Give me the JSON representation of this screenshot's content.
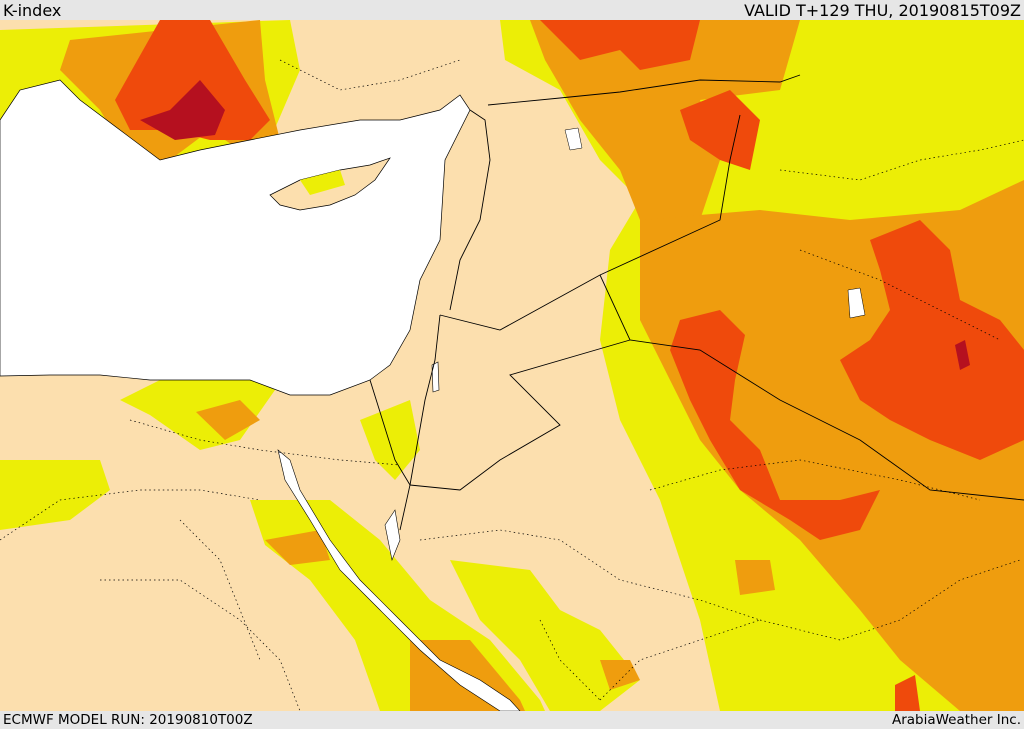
{
  "header": {
    "title": "K-index",
    "valid_time": "VALID T+129 THU, 20190815T09Z"
  },
  "footer": {
    "model_run": "ECMWF MODEL RUN: 20190810T00Z",
    "credit": "ArabiaWeather Inc."
  },
  "palette": {
    "land_base": "#fcdfae",
    "sea": "#ffffff",
    "yellow": "#ecee06",
    "orange": "#ef9d0e",
    "red_orange": "#ef4a0c",
    "dark_red": "#b5101f",
    "border": "#000000"
  }
}
